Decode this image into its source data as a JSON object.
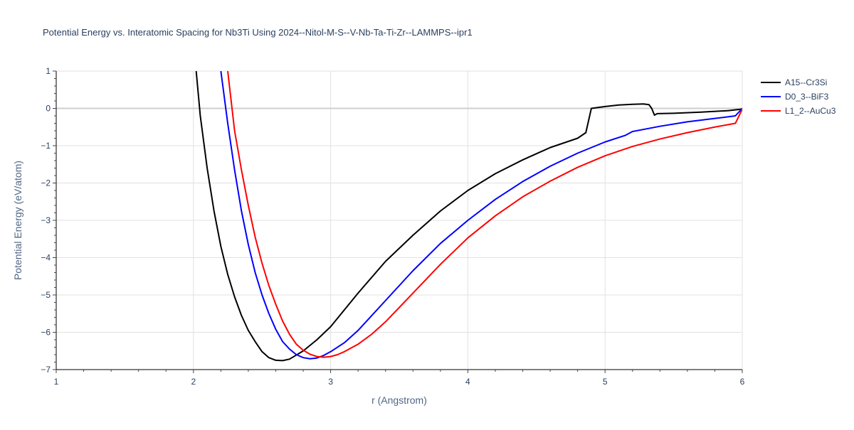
{
  "chart_data": {
    "type": "line",
    "title": "Potential Energy vs. Interatomic Spacing for Nb3Ti Using 2024--Nitol-M-S--V-Nb-Ta-Ti-Zr--LAMMPS--ipr1",
    "xlabel": "r (Angstrom)",
    "ylabel": "Potential Energy (eV/atom)",
    "xlim": [
      1,
      6
    ],
    "ylim": [
      -7,
      1
    ],
    "xticks": [
      1,
      2,
      3,
      4,
      5,
      6
    ],
    "yticks": [
      -7,
      -6,
      -5,
      -4,
      -3,
      -2,
      -1,
      0,
      1
    ],
    "xtick_labels": [
      "1",
      "2",
      "3",
      "4",
      "5",
      "6"
    ],
    "ytick_labels": [
      "−7",
      "−6",
      "−5",
      "−4",
      "−3",
      "−2",
      "−1",
      "0",
      "1"
    ],
    "grid": true,
    "legend_position": "top-right",
    "series": [
      {
        "name": "A15--Cr3Si",
        "color": "#000000",
        "x": [
          2.02,
          2.05,
          2.1,
          2.15,
          2.2,
          2.25,
          2.3,
          2.35,
          2.4,
          2.45,
          2.5,
          2.55,
          2.6,
          2.65,
          2.7,
          2.8,
          2.9,
          3.0,
          3.2,
          3.4,
          3.6,
          3.8,
          4.0,
          4.2,
          4.4,
          4.6,
          4.8,
          4.86,
          4.9,
          5.0,
          5.1,
          5.2,
          5.28,
          5.32,
          5.34,
          5.36,
          5.38,
          5.5,
          5.7,
          5.9,
          6.0
        ],
        "y": [
          1.0,
          -0.2,
          -1.6,
          -2.75,
          -3.7,
          -4.45,
          -5.05,
          -5.55,
          -5.95,
          -6.25,
          -6.52,
          -6.68,
          -6.75,
          -6.76,
          -6.72,
          -6.5,
          -6.2,
          -5.85,
          -4.95,
          -4.1,
          -3.4,
          -2.75,
          -2.2,
          -1.75,
          -1.38,
          -1.05,
          -0.8,
          -0.65,
          0.0,
          0.05,
          0.09,
          0.11,
          0.12,
          0.1,
          0.0,
          -0.18,
          -0.14,
          -0.13,
          -0.1,
          -0.06,
          -0.02
        ]
      },
      {
        "name": "D0_3--BiF3",
        "color": "#0000ff",
        "x": [
          2.2,
          2.25,
          2.3,
          2.35,
          2.4,
          2.45,
          2.5,
          2.55,
          2.6,
          2.65,
          2.7,
          2.75,
          2.8,
          2.85,
          2.9,
          2.95,
          3.0,
          3.1,
          3.2,
          3.4,
          3.6,
          3.8,
          4.0,
          4.2,
          4.4,
          4.6,
          4.8,
          5.0,
          5.15,
          5.2,
          5.4,
          5.6,
          5.8,
          5.95,
          6.0
        ],
        "y": [
          1.0,
          -0.4,
          -1.65,
          -2.75,
          -3.65,
          -4.4,
          -5.0,
          -5.5,
          -5.92,
          -6.25,
          -6.45,
          -6.6,
          -6.68,
          -6.71,
          -6.69,
          -6.62,
          -6.52,
          -6.28,
          -5.95,
          -5.15,
          -4.35,
          -3.62,
          -3.0,
          -2.44,
          -1.96,
          -1.55,
          -1.2,
          -0.9,
          -0.72,
          -0.62,
          -0.48,
          -0.36,
          -0.27,
          -0.2,
          0.0
        ]
      },
      {
        "name": "L1_2--AuCu3",
        "color": "#ff0000",
        "x": [
          2.25,
          2.3,
          2.35,
          2.4,
          2.45,
          2.5,
          2.55,
          2.6,
          2.65,
          2.7,
          2.75,
          2.8,
          2.85,
          2.9,
          2.95,
          3.0,
          3.05,
          3.1,
          3.2,
          3.3,
          3.4,
          3.6,
          3.8,
          4.0,
          4.2,
          4.4,
          4.6,
          4.8,
          5.0,
          5.2,
          5.4,
          5.6,
          5.8,
          5.95,
          6.0
        ],
        "y": [
          1.0,
          -0.6,
          -1.65,
          -2.6,
          -3.45,
          -4.15,
          -4.75,
          -5.25,
          -5.7,
          -6.05,
          -6.32,
          -6.48,
          -6.59,
          -6.65,
          -6.67,
          -6.65,
          -6.6,
          -6.52,
          -6.32,
          -6.05,
          -5.72,
          -4.95,
          -4.18,
          -3.47,
          -2.88,
          -2.37,
          -1.95,
          -1.58,
          -1.27,
          -1.02,
          -0.82,
          -0.65,
          -0.5,
          -0.4,
          -0.02
        ]
      }
    ]
  }
}
